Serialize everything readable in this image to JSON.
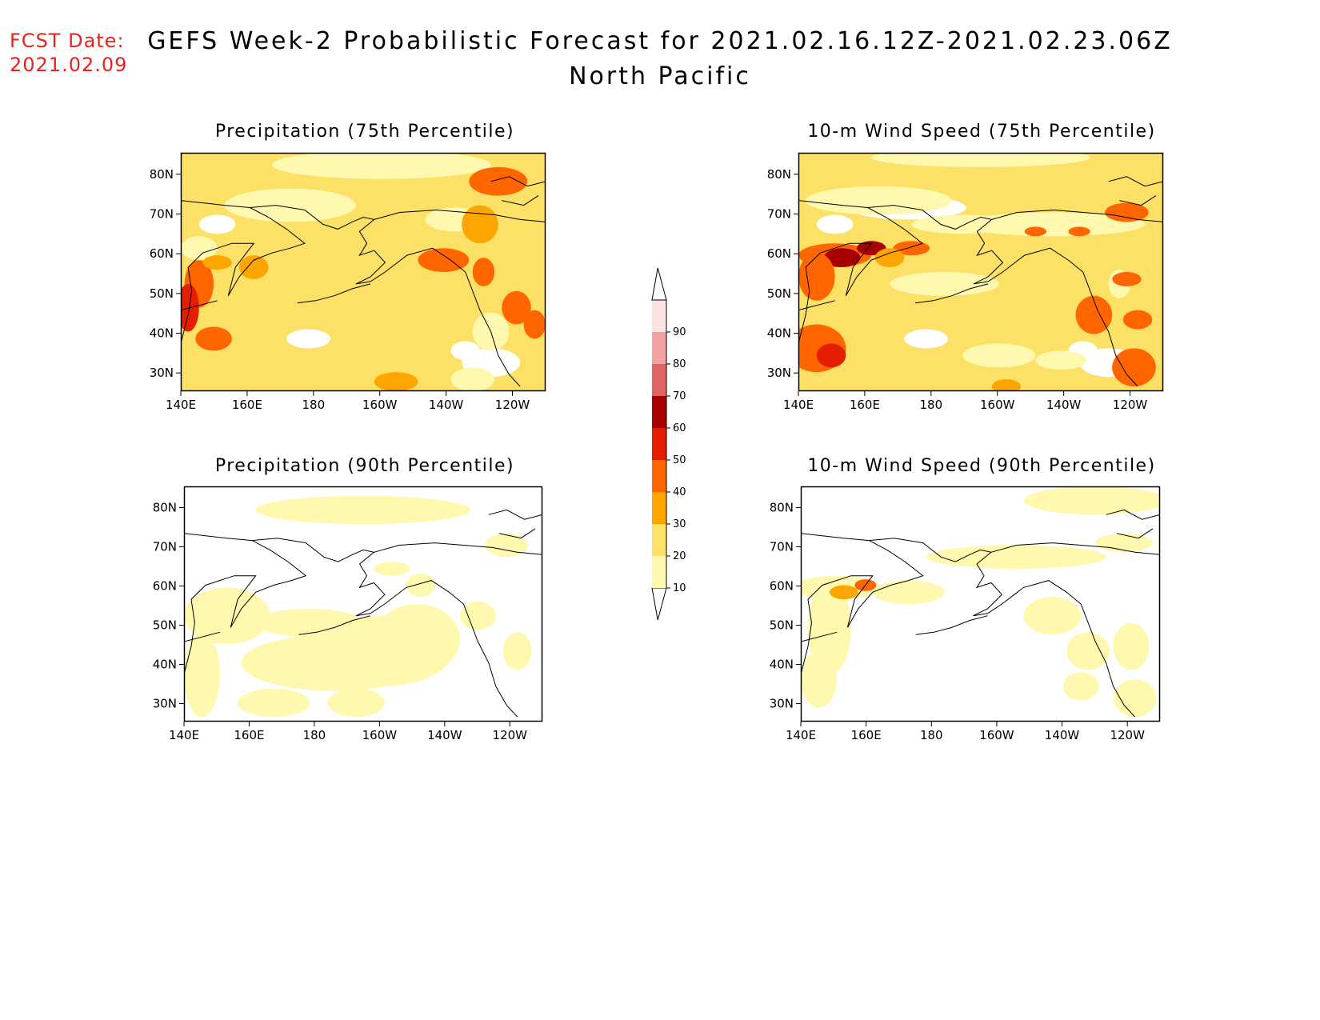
{
  "header": {
    "fcst_label": "FCST Date:",
    "fcst_date": "2021.02.09",
    "title": "GEFS Week-2 Probabilistic Forecast for 2021.02.16.12Z-2021.02.23.06Z",
    "subtitle": "North Pacific"
  },
  "axes": {
    "lon_ticks": [
      "140E",
      "160E",
      "180",
      "160W",
      "140W",
      "120W"
    ],
    "lat_ticks": [
      "80N",
      "70N",
      "60N",
      "50N",
      "40N",
      "30N"
    ]
  },
  "panels": [
    {
      "id": "precip75",
      "title": "Precipitation (75th Percentile)"
    },
    {
      "id": "wind75",
      "title": "10-m Wind Speed (75th Percentile)"
    },
    {
      "id": "precip90",
      "title": "Precipitation (90th Percentile)"
    },
    {
      "id": "wind90",
      "title": "10-m Wind Speed (90th Percentile)"
    }
  ],
  "colorbar": {
    "levels": [
      "10",
      "20",
      "30",
      "40",
      "50",
      "60",
      "70",
      "80",
      "90"
    ],
    "colors": [
      "#fff9b0",
      "#fde066",
      "#fea500",
      "#ff6600",
      "#e61e00",
      "#a80000",
      "#e06565",
      "#f2a2a2",
      "#fde2e2"
    ]
  }
}
